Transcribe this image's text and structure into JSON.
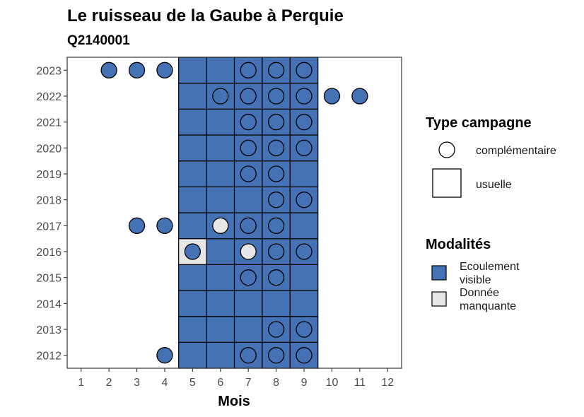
{
  "chart_data": {
    "type": "heatmap",
    "title": "Le ruisseau  de la Gaube à Perquie",
    "subtitle": "Q2140001",
    "xlabel": "Mois",
    "ylabel": "",
    "x_ticks": [
      "1",
      "2",
      "3",
      "4",
      "5",
      "6",
      "7",
      "8",
      "9",
      "10",
      "11",
      "12"
    ],
    "y_ticks": [
      "2012",
      "2013",
      "2014",
      "2015",
      "2016",
      "2017",
      "2018",
      "2019",
      "2020",
      "2021",
      "2022",
      "2023"
    ],
    "xlim": [
      0.5,
      12.5
    ],
    "ylim": [
      2011.5,
      2023.5
    ],
    "grid": false,
    "colors": {
      "ecoulement_visible": "#4472b4",
      "donnee_manquante": "#e6e6e6",
      "outline": "#000000"
    },
    "usuelle_months": [
      5,
      6,
      7,
      8,
      9
    ],
    "usuelle_cells": [
      {
        "year": 2012,
        "month": 5,
        "modalite": "Ecoulement visible"
      },
      {
        "year": 2012,
        "month": 6,
        "modalite": "Ecoulement visible"
      },
      {
        "year": 2012,
        "month": 7,
        "modalite": "Ecoulement visible"
      },
      {
        "year": 2012,
        "month": 8,
        "modalite": "Ecoulement visible"
      },
      {
        "year": 2012,
        "month": 9,
        "modalite": "Ecoulement visible"
      },
      {
        "year": 2013,
        "month": 5,
        "modalite": "Ecoulement visible"
      },
      {
        "year": 2013,
        "month": 6,
        "modalite": "Ecoulement visible"
      },
      {
        "year": 2013,
        "month": 7,
        "modalite": "Ecoulement visible"
      },
      {
        "year": 2013,
        "month": 8,
        "modalite": "Ecoulement visible"
      },
      {
        "year": 2013,
        "month": 9,
        "modalite": "Ecoulement visible"
      },
      {
        "year": 2014,
        "month": 5,
        "modalite": "Ecoulement visible"
      },
      {
        "year": 2014,
        "month": 6,
        "modalite": "Ecoulement visible"
      },
      {
        "year": 2014,
        "month": 7,
        "modalite": "Ecoulement visible"
      },
      {
        "year": 2014,
        "month": 8,
        "modalite": "Ecoulement visible"
      },
      {
        "year": 2014,
        "month": 9,
        "modalite": "Ecoulement visible"
      },
      {
        "year": 2015,
        "month": 5,
        "modalite": "Ecoulement visible"
      },
      {
        "year": 2015,
        "month": 6,
        "modalite": "Ecoulement visible"
      },
      {
        "year": 2015,
        "month": 7,
        "modalite": "Ecoulement visible"
      },
      {
        "year": 2015,
        "month": 8,
        "modalite": "Ecoulement visible"
      },
      {
        "year": 2015,
        "month": 9,
        "modalite": "Ecoulement visible"
      },
      {
        "year": 2016,
        "month": 5,
        "modalite": "Donnée manquante"
      },
      {
        "year": 2016,
        "month": 6,
        "modalite": "Ecoulement visible"
      },
      {
        "year": 2016,
        "month": 7,
        "modalite": "Ecoulement visible"
      },
      {
        "year": 2016,
        "month": 8,
        "modalite": "Ecoulement visible"
      },
      {
        "year": 2016,
        "month": 9,
        "modalite": "Ecoulement visible"
      },
      {
        "year": 2017,
        "month": 5,
        "modalite": "Ecoulement visible"
      },
      {
        "year": 2017,
        "month": 6,
        "modalite": "Ecoulement visible"
      },
      {
        "year": 2017,
        "month": 7,
        "modalite": "Ecoulement visible"
      },
      {
        "year": 2017,
        "month": 8,
        "modalite": "Ecoulement visible"
      },
      {
        "year": 2017,
        "month": 9,
        "modalite": "Ecoulement visible"
      },
      {
        "year": 2018,
        "month": 5,
        "modalite": "Ecoulement visible"
      },
      {
        "year": 2018,
        "month": 6,
        "modalite": "Ecoulement visible"
      },
      {
        "year": 2018,
        "month": 7,
        "modalite": "Ecoulement visible"
      },
      {
        "year": 2018,
        "month": 8,
        "modalite": "Ecoulement visible"
      },
      {
        "year": 2018,
        "month": 9,
        "modalite": "Ecoulement visible"
      },
      {
        "year": 2019,
        "month": 5,
        "modalite": "Ecoulement visible"
      },
      {
        "year": 2019,
        "month": 6,
        "modalite": "Ecoulement visible"
      },
      {
        "year": 2019,
        "month": 7,
        "modalite": "Ecoulement visible"
      },
      {
        "year": 2019,
        "month": 8,
        "modalite": "Ecoulement visible"
      },
      {
        "year": 2019,
        "month": 9,
        "modalite": "Ecoulement visible"
      },
      {
        "year": 2020,
        "month": 5,
        "modalite": "Ecoulement visible"
      },
      {
        "year": 2020,
        "month": 6,
        "modalite": "Ecoulement visible"
      },
      {
        "year": 2020,
        "month": 7,
        "modalite": "Ecoulement visible"
      },
      {
        "year": 2020,
        "month": 8,
        "modalite": "Ecoulement visible"
      },
      {
        "year": 2020,
        "month": 9,
        "modalite": "Ecoulement visible"
      },
      {
        "year": 2021,
        "month": 5,
        "modalite": "Ecoulement visible"
      },
      {
        "year": 2021,
        "month": 6,
        "modalite": "Ecoulement visible"
      },
      {
        "year": 2021,
        "month": 7,
        "modalite": "Ecoulement visible"
      },
      {
        "year": 2021,
        "month": 8,
        "modalite": "Ecoulement visible"
      },
      {
        "year": 2021,
        "month": 9,
        "modalite": "Ecoulement visible"
      },
      {
        "year": 2022,
        "month": 5,
        "modalite": "Ecoulement visible"
      },
      {
        "year": 2022,
        "month": 6,
        "modalite": "Ecoulement visible"
      },
      {
        "year": 2022,
        "month": 7,
        "modalite": "Ecoulement visible"
      },
      {
        "year": 2022,
        "month": 8,
        "modalite": "Ecoulement visible"
      },
      {
        "year": 2022,
        "month": 9,
        "modalite": "Ecoulement visible"
      },
      {
        "year": 2023,
        "month": 5,
        "modalite": "Ecoulement visible"
      },
      {
        "year": 2023,
        "month": 6,
        "modalite": "Ecoulement visible"
      },
      {
        "year": 2023,
        "month": 7,
        "modalite": "Ecoulement visible"
      },
      {
        "year": 2023,
        "month": 8,
        "modalite": "Ecoulement visible"
      },
      {
        "year": 2023,
        "month": 9,
        "modalite": "Ecoulement visible"
      }
    ],
    "complementaire_points": [
      {
        "year": 2023,
        "month": 2,
        "modalite": "Ecoulement visible"
      },
      {
        "year": 2023,
        "month": 3,
        "modalite": "Ecoulement visible"
      },
      {
        "year": 2023,
        "month": 4,
        "modalite": "Ecoulement visible"
      },
      {
        "year": 2023,
        "month": 7,
        "modalite": "Ecoulement visible"
      },
      {
        "year": 2023,
        "month": 8,
        "modalite": "Ecoulement visible"
      },
      {
        "year": 2023,
        "month": 9,
        "modalite": "Ecoulement visible"
      },
      {
        "year": 2022,
        "month": 6,
        "modalite": "Ecoulement visible"
      },
      {
        "year": 2022,
        "month": 7,
        "modalite": "Ecoulement visible"
      },
      {
        "year": 2022,
        "month": 8,
        "modalite": "Ecoulement visible"
      },
      {
        "year": 2022,
        "month": 9,
        "modalite": "Ecoulement visible"
      },
      {
        "year": 2022,
        "month": 10,
        "modalite": "Ecoulement visible"
      },
      {
        "year": 2022,
        "month": 11,
        "modalite": "Ecoulement visible"
      },
      {
        "year": 2021,
        "month": 7,
        "modalite": "Ecoulement visible"
      },
      {
        "year": 2021,
        "month": 8,
        "modalite": "Ecoulement visible"
      },
      {
        "year": 2021,
        "month": 9,
        "modalite": "Ecoulement visible"
      },
      {
        "year": 2020,
        "month": 7,
        "modalite": "Ecoulement visible"
      },
      {
        "year": 2020,
        "month": 8,
        "modalite": "Ecoulement visible"
      },
      {
        "year": 2020,
        "month": 9,
        "modalite": "Ecoulement visible"
      },
      {
        "year": 2019,
        "month": 7,
        "modalite": "Ecoulement visible"
      },
      {
        "year": 2019,
        "month": 8,
        "modalite": "Ecoulement visible"
      },
      {
        "year": 2018,
        "month": 8,
        "modalite": "Ecoulement visible"
      },
      {
        "year": 2018,
        "month": 9,
        "modalite": "Ecoulement visible"
      },
      {
        "year": 2017,
        "month": 3,
        "modalite": "Ecoulement visible"
      },
      {
        "year": 2017,
        "month": 4,
        "modalite": "Ecoulement visible"
      },
      {
        "year": 2017,
        "month": 6,
        "modalite": "Donnée manquante"
      },
      {
        "year": 2017,
        "month": 7,
        "modalite": "Ecoulement visible"
      },
      {
        "year": 2017,
        "month": 8,
        "modalite": "Ecoulement visible"
      },
      {
        "year": 2016,
        "month": 5,
        "modalite": "Ecoulement visible"
      },
      {
        "year": 2016,
        "month": 7,
        "modalite": "Donnée manquante"
      },
      {
        "year": 2016,
        "month": 8,
        "modalite": "Ecoulement visible"
      },
      {
        "year": 2016,
        "month": 9,
        "modalite": "Ecoulement visible"
      },
      {
        "year": 2015,
        "month": 7,
        "modalite": "Ecoulement visible"
      },
      {
        "year": 2015,
        "month": 8,
        "modalite": "Ecoulement visible"
      },
      {
        "year": 2013,
        "month": 8,
        "modalite": "Ecoulement visible"
      },
      {
        "year": 2013,
        "month": 9,
        "modalite": "Ecoulement visible"
      },
      {
        "year": 2012,
        "month": 4,
        "modalite": "Ecoulement visible"
      },
      {
        "year": 2012,
        "month": 7,
        "modalite": "Ecoulement visible"
      },
      {
        "year": 2012,
        "month": 8,
        "modalite": "Ecoulement visible"
      },
      {
        "year": 2012,
        "month": 9,
        "modalite": "Ecoulement visible"
      }
    ],
    "legend": {
      "placement": "right",
      "type_title": "Type campagne",
      "type_entries": [
        {
          "label": "complémentaire",
          "shape": "circle"
        },
        {
          "label": "usuelle",
          "shape": "square"
        }
      ],
      "modalites_title": "Modalités",
      "modalites_entries": [
        {
          "label_lines": [
            "Ecoulement",
            "visible"
          ],
          "color_key": "ecoulement_visible"
        },
        {
          "label_lines": [
            "Donnée",
            "manquante"
          ],
          "color_key": "donnee_manquante"
        }
      ]
    }
  }
}
